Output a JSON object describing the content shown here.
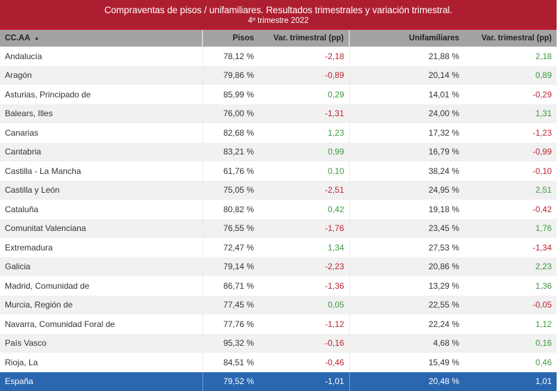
{
  "header": {
    "title": "Compraventas de pisos / unifamiliares. Resultados trimestrales  y variación trimestral.",
    "subtitle": "4º trimestre 2022"
  },
  "colors": {
    "title_bg": "#ad1f30",
    "header_bg": "#a3a3a3",
    "total_bg": "#2b67b1",
    "negative": "#b8232f",
    "positive": "#3a9a3e"
  },
  "table": {
    "columns": [
      "CC.AA",
      "Pisos",
      "Var. trimestral (pp)",
      "Unifamiliares",
      "Var. trimestral (pp)"
    ],
    "sort_icon": "sort-ascending-icon",
    "sort_glyph": "▲",
    "rows": [
      {
        "region": "Andalucía",
        "pisos": "78,12 %",
        "var_pisos": "-2,18",
        "unifamiliares": "21,88 %",
        "var_unif": "2,18"
      },
      {
        "region": "Aragón",
        "pisos": "79,86 %",
        "var_pisos": "-0,89",
        "unifamiliares": "20,14 %",
        "var_unif": "0,89"
      },
      {
        "region": "Asturias, Principado de",
        "pisos": "85,99 %",
        "var_pisos": "0,29",
        "unifamiliares": "14,01 %",
        "var_unif": "-0,29"
      },
      {
        "region": "Balears, Illes",
        "pisos": "76,00 %",
        "var_pisos": "-1,31",
        "unifamiliares": "24,00 %",
        "var_unif": "1,31"
      },
      {
        "region": "Canarias",
        "pisos": "82,68 %",
        "var_pisos": "1,23",
        "unifamiliares": "17,32 %",
        "var_unif": "-1,23"
      },
      {
        "region": "Cantabria",
        "pisos": "83,21 %",
        "var_pisos": "0,99",
        "unifamiliares": "16,79 %",
        "var_unif": "-0,99"
      },
      {
        "region": "Castilla - La Mancha",
        "pisos": "61,76 %",
        "var_pisos": "0,10",
        "unifamiliares": "38,24 %",
        "var_unif": "-0,10"
      },
      {
        "region": "Castilla y León",
        "pisos": "75,05 %",
        "var_pisos": "-2,51",
        "unifamiliares": "24,95 %",
        "var_unif": "2,51"
      },
      {
        "region": "Cataluña",
        "pisos": "80,82 %",
        "var_pisos": "0,42",
        "unifamiliares": "19,18 %",
        "var_unif": "-0,42"
      },
      {
        "region": "Comunitat Valenciana",
        "pisos": "76,55 %",
        "var_pisos": "-1,76",
        "unifamiliares": "23,45 %",
        "var_unif": "1,76"
      },
      {
        "region": "Extremadura",
        "pisos": "72,47 %",
        "var_pisos": "1,34",
        "unifamiliares": "27,53 %",
        "var_unif": "-1,34"
      },
      {
        "region": "Galicia",
        "pisos": "79,14 %",
        "var_pisos": "-2,23",
        "unifamiliares": "20,86 %",
        "var_unif": "2,23"
      },
      {
        "region": "Madrid, Comunidad de",
        "pisos": "86,71 %",
        "var_pisos": "-1,36",
        "unifamiliares": "13,29 %",
        "var_unif": "1,36"
      },
      {
        "region": "Murcia, Región de",
        "pisos": "77,45 %",
        "var_pisos": "0,05",
        "unifamiliares": "22,55 %",
        "var_unif": "-0,05"
      },
      {
        "region": "Navarra, Comunidad Foral de",
        "pisos": "77,76 %",
        "var_pisos": "-1,12",
        "unifamiliares": "22,24 %",
        "var_unif": "1,12"
      },
      {
        "region": "País Vasco",
        "pisos": "95,32 %",
        "var_pisos": "-0,16",
        "unifamiliares": "4,68 %",
        "var_unif": "0,16"
      },
      {
        "region": "Rioja, La",
        "pisos": "84,51 %",
        "var_pisos": "-0,46",
        "unifamiliares": "15,49 %",
        "var_unif": "0,46"
      }
    ],
    "total": {
      "region": "España",
      "pisos": "79,52 %",
      "var_pisos": "-1,01",
      "unifamiliares": "20,48 %",
      "var_unif": "1,01"
    }
  }
}
